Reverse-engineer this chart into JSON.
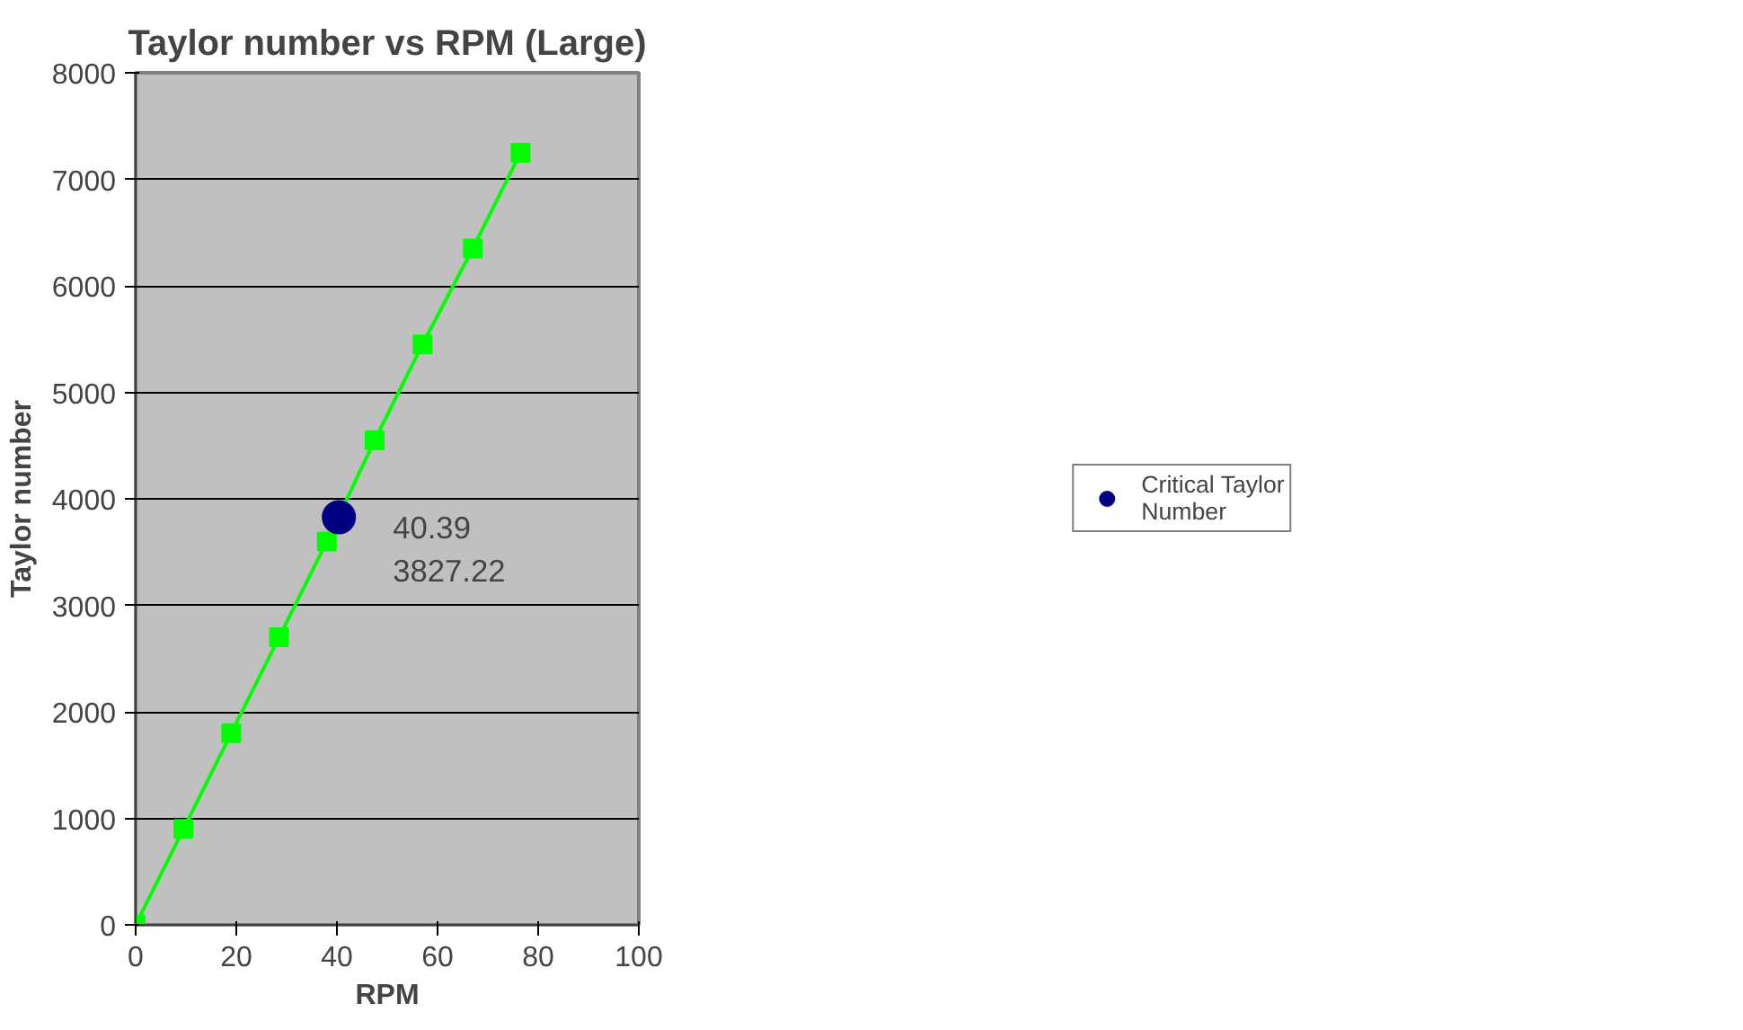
{
  "chart_data": {
    "type": "line",
    "title": "Taylor number vs RPM (Large)",
    "xlabel": "RPM",
    "ylabel": "Taylor number",
    "xlim": [
      0,
      100
    ],
    "xticks": [
      0,
      20,
      40,
      60,
      80,
      100
    ],
    "ylim": [
      0,
      8000
    ],
    "yticks": [
      0,
      1000,
      2000,
      3000,
      4000,
      5000,
      6000,
      7000,
      8000
    ],
    "grid": "y",
    "legend": "right",
    "line_style": "solid",
    "series": [
      {
        "marker": "square",
        "color": "#00ff00",
        "x": [
          0,
          9.5,
          19,
          28.5,
          38,
          47.5,
          57,
          67,
          76.5
        ],
        "values": [
          0,
          900,
          1800,
          2700,
          3600,
          4550,
          5450,
          6350,
          7250
        ]
      },
      {
        "type": "scatter",
        "marker": "circle",
        "name": "Critical Taylor Number",
        "color": "#000080",
        "x": [
          40.39
        ],
        "values": [
          3827.22
        ]
      }
    ],
    "annotations": [
      {
        "text": "40.39\n3827.22",
        "x": 40.39,
        "y": 3827.22
      }
    ]
  }
}
